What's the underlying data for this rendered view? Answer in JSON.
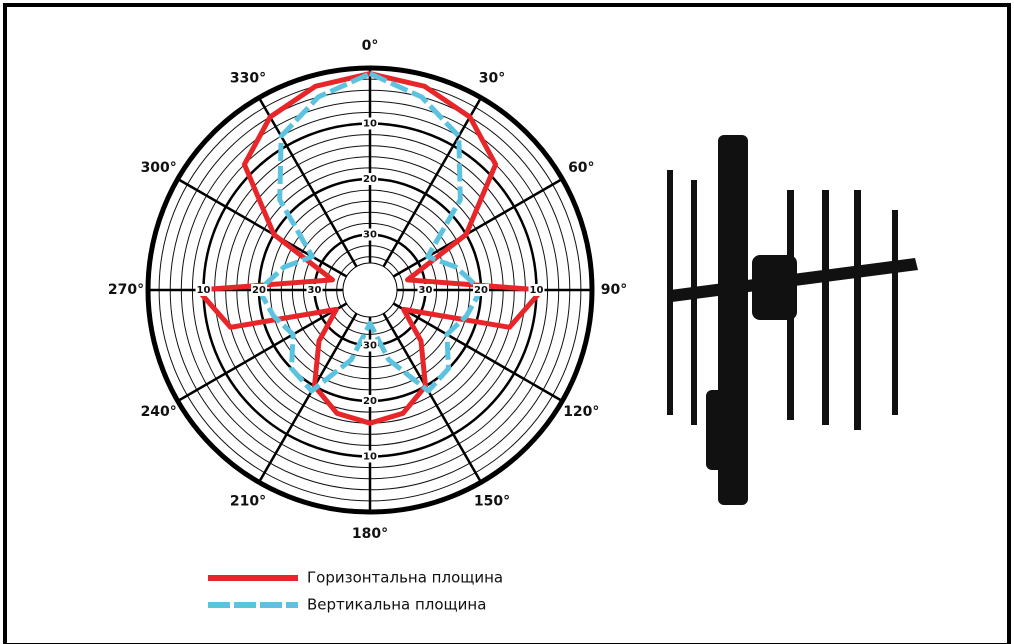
{
  "chart_data": {
    "type": "polar",
    "theta": [
      0,
      15,
      30,
      45,
      60,
      75,
      90,
      105,
      120,
      135,
      150,
      165,
      180,
      195,
      210,
      225,
      240,
      255,
      270,
      285,
      300,
      315,
      330,
      345
    ],
    "series": [
      {
        "name": "Горизонтальна площина",
        "color": "#e8262a",
        "dashed": false,
        "values": [
          1,
          2,
          4,
          8,
          20,
          33,
          9,
          14,
          33,
          27,
          20,
          17,
          16,
          17,
          20,
          27,
          33,
          14,
          9,
          33,
          20,
          8,
          4,
          2
        ]
      },
      {
        "name": "Вертикальна площина",
        "color": "#5bc3e0",
        "dashed": true,
        "values": [
          1,
          4,
          8,
          17,
          28,
          24,
          20,
          22,
          24,
          20,
          19,
          27,
          34,
          27,
          19,
          20,
          24,
          22,
          20,
          24,
          28,
          17,
          8,
          4
        ]
      }
    ],
    "rlim": [
      40,
      0
    ],
    "rticks": [
      10,
      20,
      30
    ],
    "thetaticks": [
      {
        "value": 0,
        "label": "0°"
      },
      {
        "value": 30,
        "label": "30°"
      },
      {
        "value": 60,
        "label": "60°"
      },
      {
        "value": 90,
        "label": "90°"
      },
      {
        "value": 120,
        "label": "120°"
      },
      {
        "value": 150,
        "label": "150°"
      },
      {
        "value": 180,
        "label": "180°"
      },
      {
        "value": 210,
        "label": "210°"
      },
      {
        "value": 240,
        "label": "240°"
      },
      {
        "value": 270,
        "label": "270°"
      },
      {
        "value": 300,
        "label": "300°"
      },
      {
        "value": 330,
        "label": "330°"
      }
    ]
  }
}
